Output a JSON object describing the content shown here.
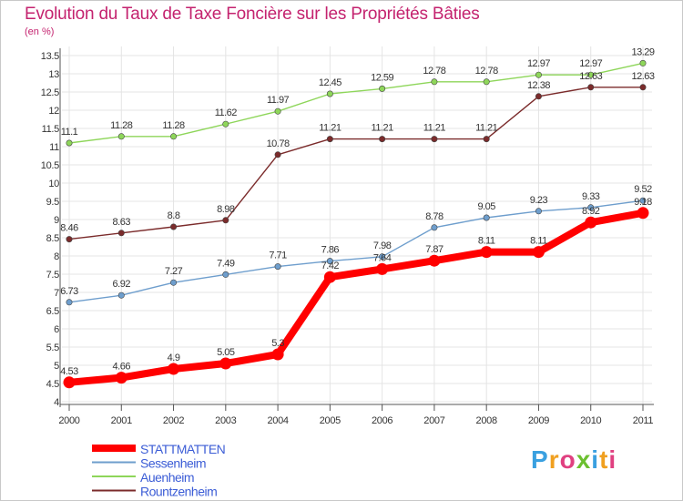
{
  "chart_data": {
    "type": "line",
    "title": "Evolution du Taux de Taxe Foncière sur les Propriétés Bâties",
    "subtitle": "(en %)",
    "x": [
      "2000",
      "2001",
      "2002",
      "2003",
      "2004",
      "2005",
      "2006",
      "2007",
      "2008",
      "2009",
      "2010",
      "2011"
    ],
    "ylim": [
      4,
      13.5
    ],
    "yticks": [
      "4",
      "4.5",
      "5",
      "5.5",
      "6",
      "6.5",
      "7",
      "7.5",
      "8",
      "8.5",
      "9",
      "9.5",
      "10",
      "10.5",
      "11",
      "11.5",
      "12",
      "12.5",
      "13",
      "13.5"
    ],
    "grid": true,
    "legend_position": "bottom-left",
    "series": [
      {
        "name": "STATTMATTEN",
        "color": "#ff0000",
        "values": [
          4.53,
          4.66,
          4.9,
          5.05,
          5.3,
          7.42,
          7.64,
          7.87,
          8.11,
          8.11,
          8.92,
          9.18
        ],
        "labels": [
          "4.53",
          "4.66",
          "4.9",
          "5.05",
          "5.3",
          "7.42",
          "7.64",
          "7.87",
          "8.11",
          "8.11",
          "8.92",
          "9.18"
        ]
      },
      {
        "name": "Sessenheim",
        "color": "#6e9ecd",
        "values": [
          6.73,
          6.92,
          7.27,
          7.49,
          7.71,
          7.86,
          7.98,
          8.78,
          9.05,
          9.23,
          9.33,
          9.52
        ],
        "labels": [
          "6.73",
          "6.92",
          "7.27",
          "7.49",
          "7.71",
          "7.86",
          "7.98",
          "8.78",
          "9.05",
          "9.23",
          "9.33",
          "9.52"
        ]
      },
      {
        "name": "Auenheim",
        "color": "#8ed65a",
        "values": [
          11.1,
          11.28,
          11.28,
          11.62,
          11.97,
          12.45,
          12.59,
          12.78,
          12.78,
          12.97,
          12.97,
          13.29
        ],
        "labels": [
          "11.1",
          "11.28",
          "11.28",
          "11.62",
          "11.97",
          "12.45",
          "12.59",
          "12.78",
          "12.78",
          "12.97",
          "12.97",
          "13.29"
        ]
      },
      {
        "name": "Rountzenheim",
        "color": "#7b2b2b",
        "values": [
          8.46,
          8.63,
          8.8,
          8.98,
          10.78,
          11.21,
          11.21,
          11.21,
          11.21,
          12.38,
          12.63,
          12.63
        ],
        "labels": [
          "8.46",
          "8.63",
          "8.8",
          "8.98",
          "10.78",
          "11.21",
          "11.21",
          "11.21",
          "11.21",
          "12.38",
          "12.63",
          "12.63"
        ]
      }
    ]
  },
  "logo": {
    "letters": [
      "P",
      "r",
      "o",
      "x",
      "i",
      "t",
      "i"
    ],
    "colors": [
      "#3aa0e0",
      "#f0a020",
      "#e04080",
      "#6cc030",
      "#3aa0e0",
      "#f0a020",
      "#e04080"
    ]
  }
}
